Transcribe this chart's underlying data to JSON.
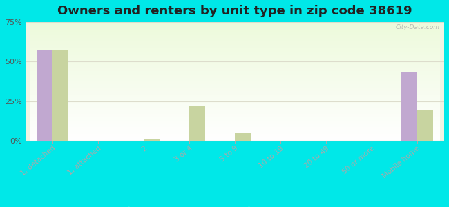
{
  "title": "Owners and renters by unit type in zip code 38619",
  "categories": [
    "1, detached",
    "1, attached",
    "2",
    "3 or 4",
    "5 to 9",
    "10 to 19",
    "20 to 49",
    "50 or more",
    "Mobile home"
  ],
  "owner_values": [
    57,
    0,
    0,
    0,
    0,
    0,
    0,
    0,
    43
  ],
  "renter_values": [
    57,
    0,
    1,
    22,
    5,
    0,
    0,
    0,
    19
  ],
  "owner_color": "#c1a8d0",
  "renter_color": "#c8d4a0",
  "background_color": "#00e8e8",
  "ylim": [
    0,
    75
  ],
  "yticks": [
    0,
    25,
    50,
    75
  ],
  "title_fontsize": 13,
  "watermark": "City-Data.com"
}
